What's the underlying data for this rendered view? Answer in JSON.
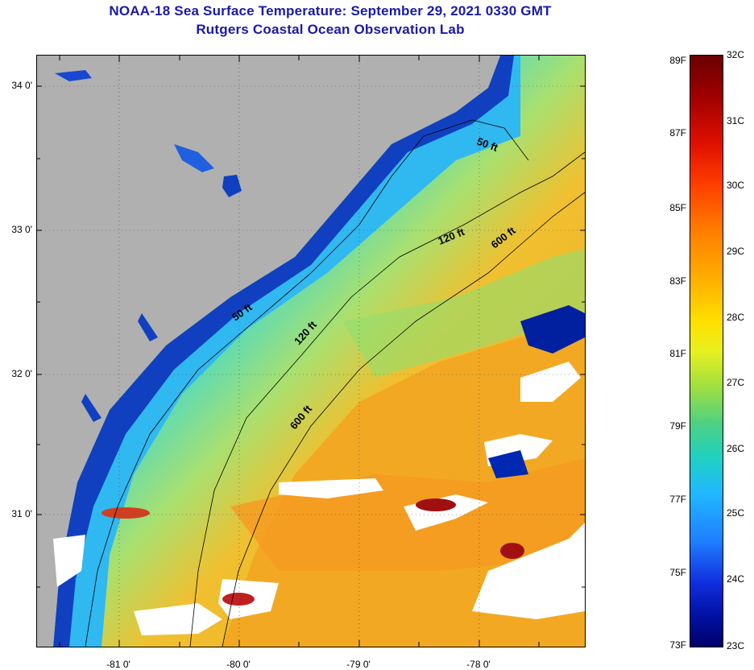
{
  "title_line1": "NOAA-18 Sea Surface Temperature:  September 29, 2021 0330 GMT",
  "title_line2": "Rutgers Coastal Ocean Observation Lab",
  "latitude_labels": [
    "34 0'",
    "33 0'",
    "32 0'",
    "31 0'"
  ],
  "longitude_labels": [
    "-81 0'",
    "-80 0'",
    "-79 0'",
    "-78 0'"
  ],
  "contour_labels": {
    "c50_north": "50 ft",
    "c50_south": "50 ft",
    "c120_north": "120 ft",
    "c120_south": "120 ft",
    "c600_north": "600 ft",
    "c600_south": "600 ft"
  },
  "colorbar": {
    "fahrenheit": [
      "89F",
      "87F",
      "85F",
      "83F",
      "81F",
      "79F",
      "77F",
      "75F",
      "73F"
    ],
    "celsius": [
      "32C",
      "31C",
      "30C",
      "29C",
      "28C",
      "27C",
      "26C",
      "25C",
      "24C",
      "23C"
    ]
  },
  "colors": {
    "land": "#b0b0b0",
    "cloud": "#ffffff",
    "warm_water": "#f0a020",
    "cool_water": "#30c8e8",
    "coastal_cold": "#0020a0",
    "title": "#1a1aa8"
  }
}
